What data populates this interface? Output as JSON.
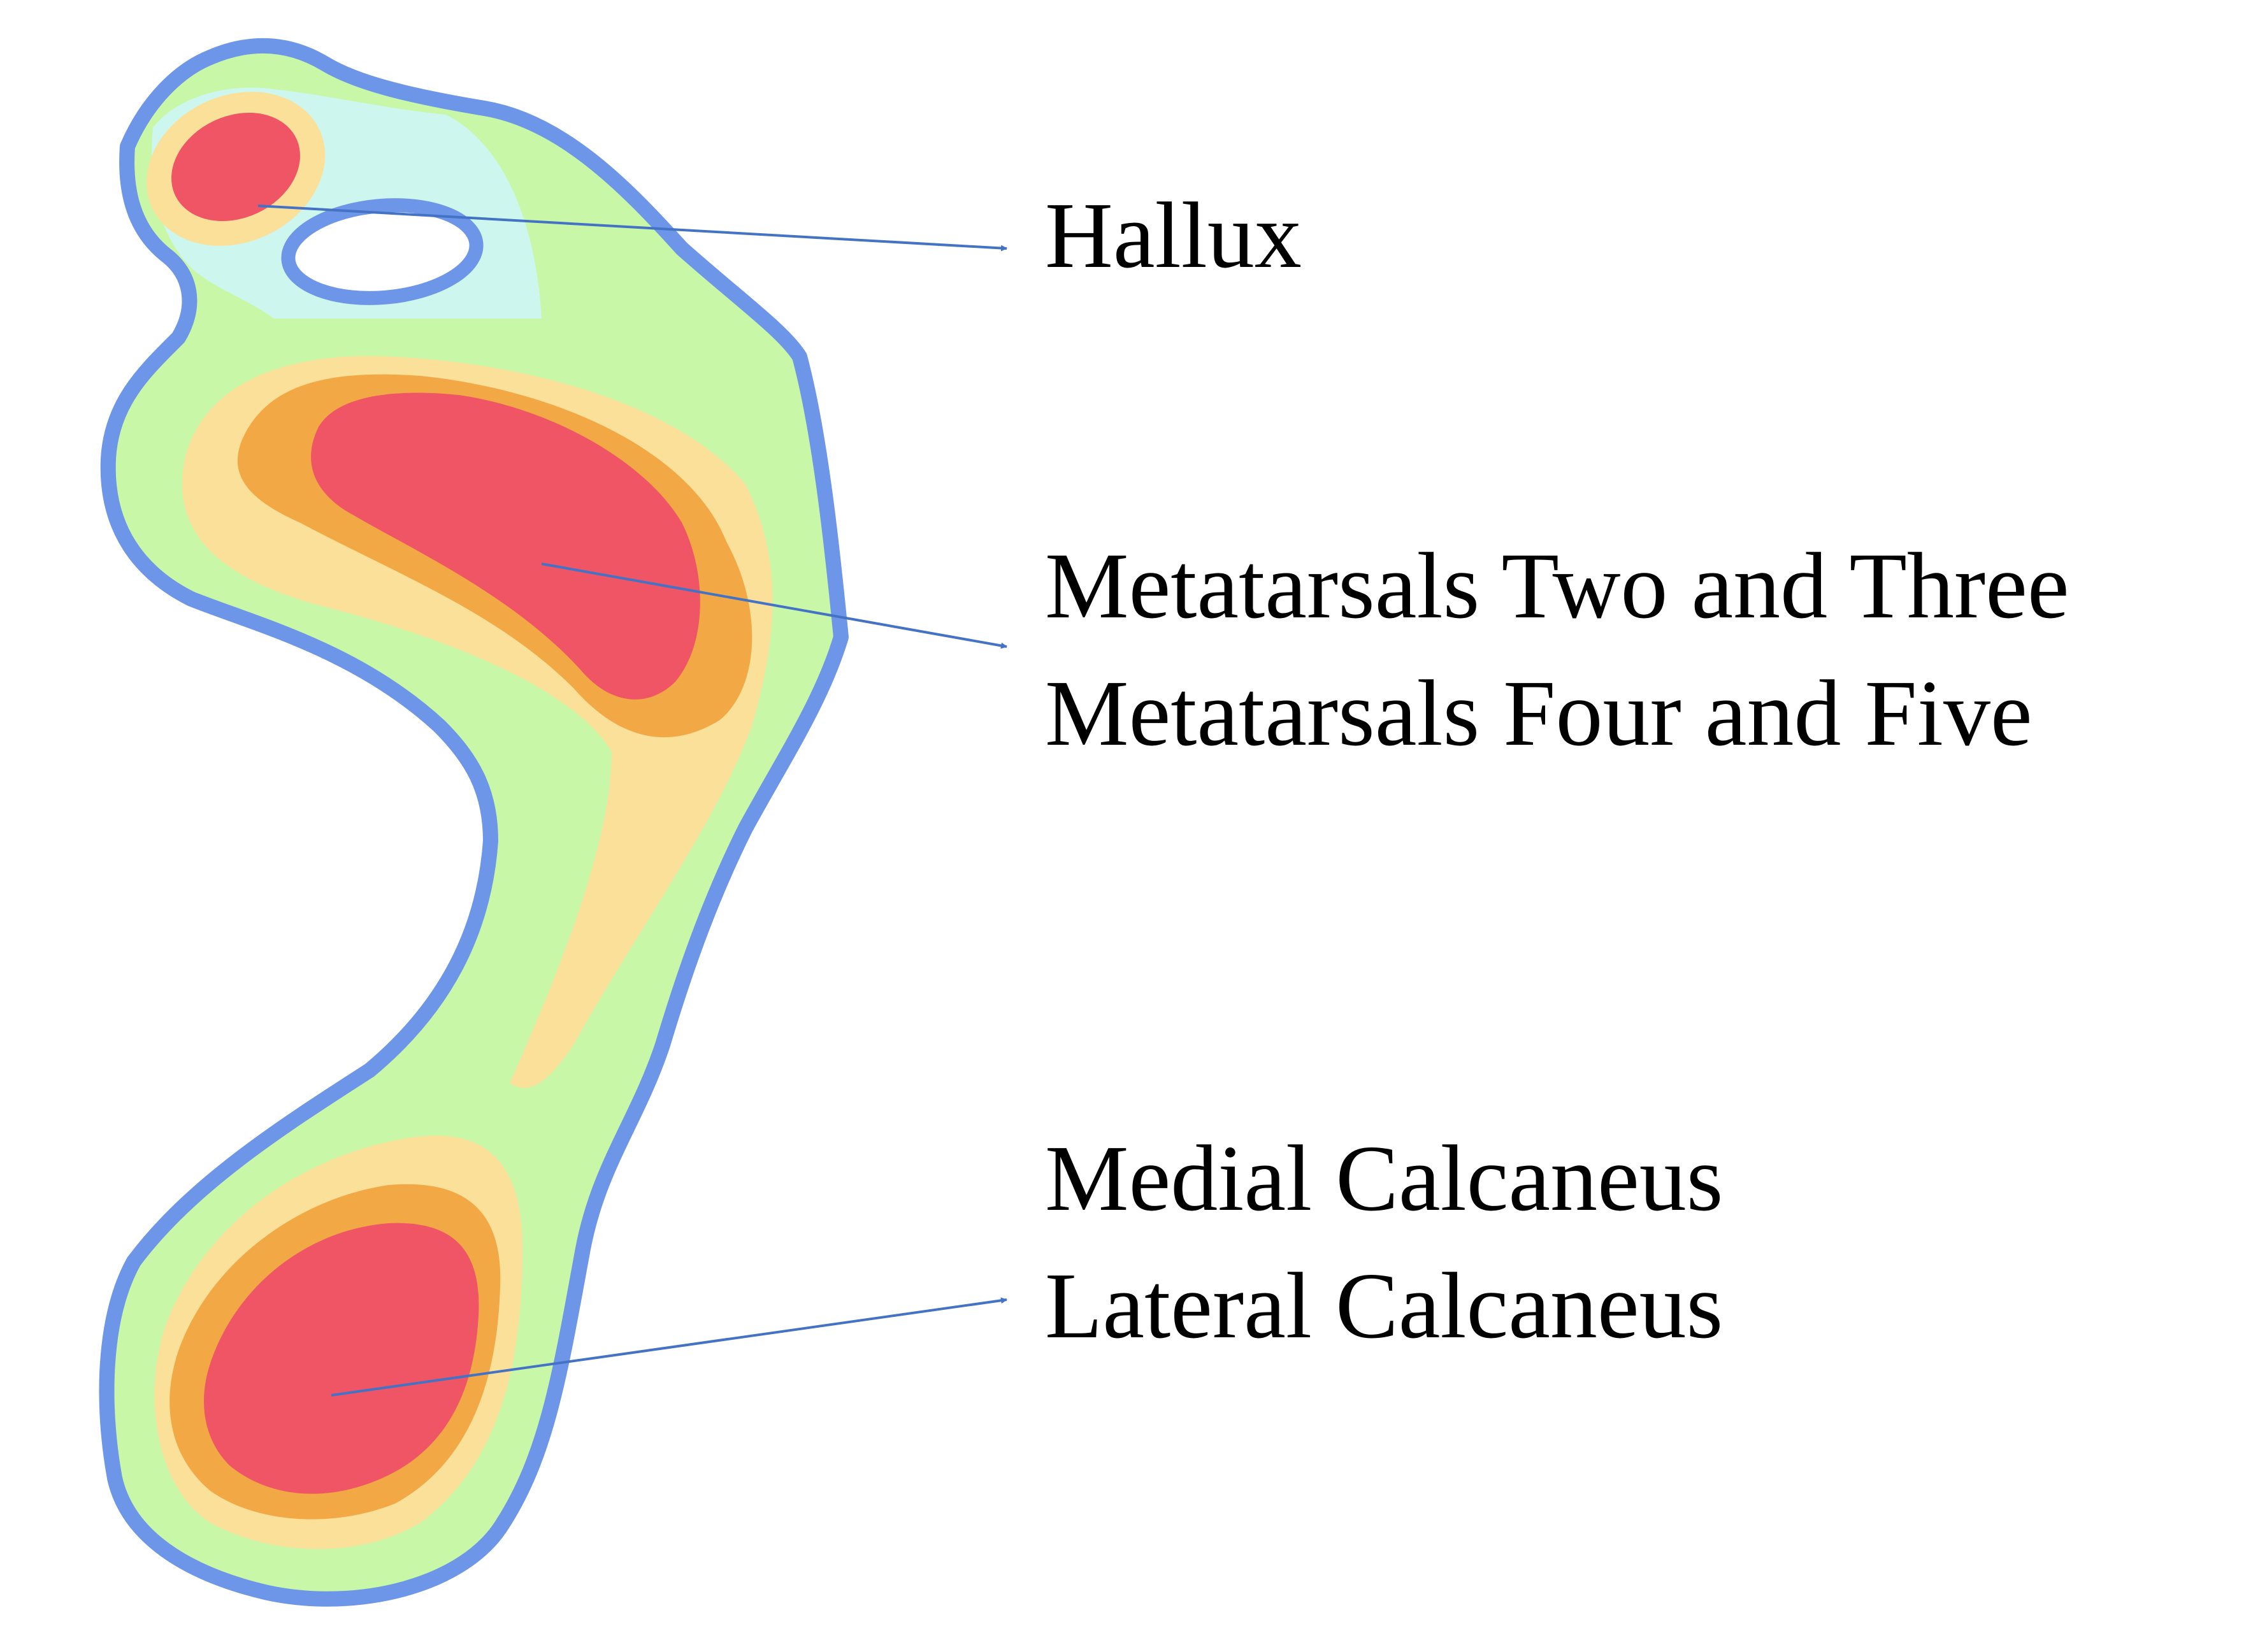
{
  "diagram": {
    "colors": {
      "outline": "#6d96e8",
      "outer_zone": "#c9f7a8",
      "toe_zone": "#cdf6ee",
      "mid_zone": "#fbe09a",
      "high_zone": "#f2a945",
      "peak_zone": "#ef5565",
      "arrow": "#4472c4",
      "background": "#ffffff"
    },
    "labels": {
      "hallux": "Hallux",
      "metatarsals_two_three": "Metatarsals Two and Three",
      "metatarsals_four_five": "Metatarsals Four and Five",
      "medial_calcaneus": "Medial Calcaneus",
      "lateral_calcaneus": "Lateral Calcaneus"
    }
  }
}
